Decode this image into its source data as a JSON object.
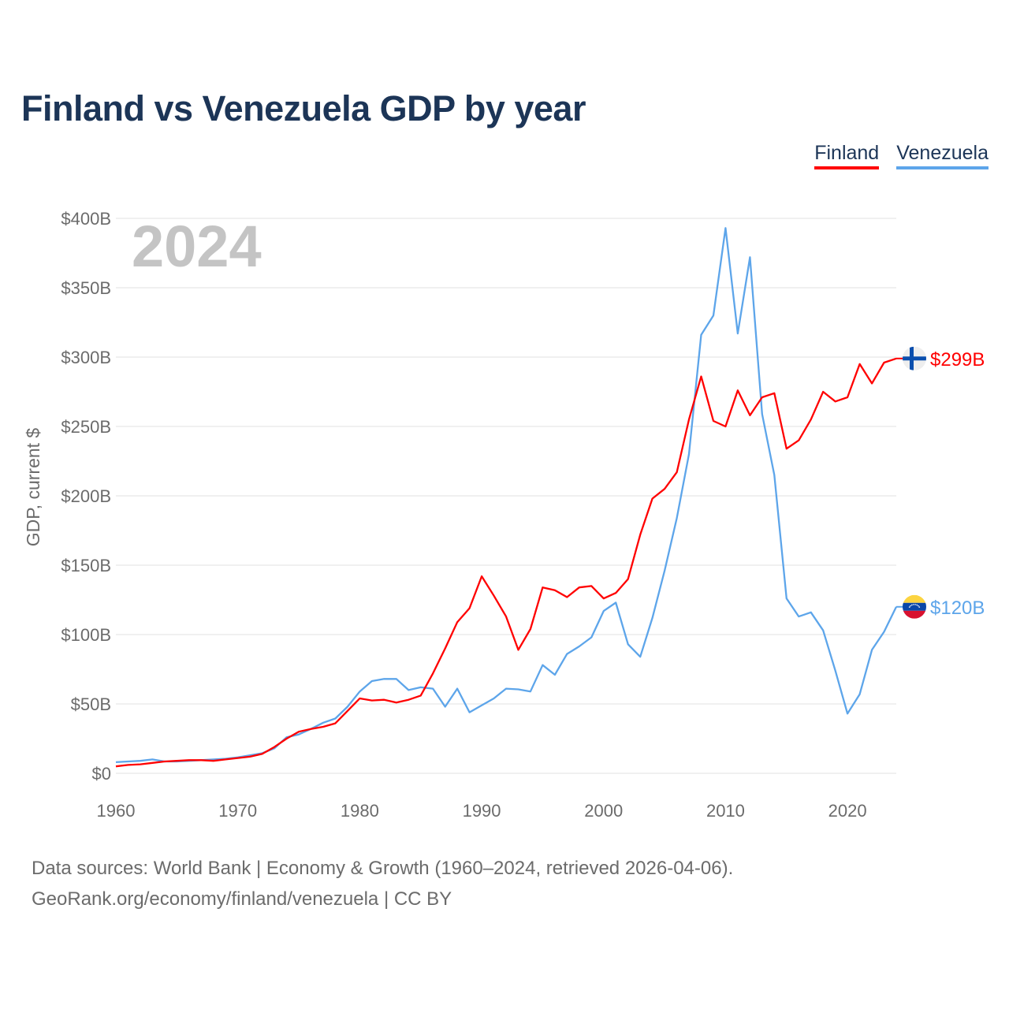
{
  "title": "Finland vs Venezuela GDP by year",
  "footer": {
    "line1": "Data sources: World Bank | Economy & Growth (1960–2024, retrieved 2026-04-06).",
    "line2": "GeoRank.org/economy/finland/venezuela | CC BY"
  },
  "chart_data": {
    "type": "line",
    "title": "Finland vs Venezuela GDP by year",
    "year_label": "2024",
    "xlabel": "",
    "ylabel": "GDP, current $",
    "xlim": [
      1960,
      2024
    ],
    "ylim": [
      0,
      400
    ],
    "x_ticks": [
      1960,
      1970,
      1980,
      1990,
      2000,
      2010,
      2020
    ],
    "x_tick_labels": [
      "1960",
      "1970",
      "1980",
      "1990",
      "2000",
      "2010",
      "2020"
    ],
    "y_ticks": [
      0,
      50,
      100,
      150,
      200,
      250,
      300,
      350,
      400
    ],
    "y_tick_labels": [
      "$0",
      "$50B",
      "$100B",
      "$150B",
      "$200B",
      "$250B",
      "$300B",
      "$350B",
      "$400B"
    ],
    "grid": true,
    "legend_position": "top-right",
    "x": [
      1960,
      1961,
      1962,
      1963,
      1964,
      1965,
      1966,
      1967,
      1968,
      1969,
      1970,
      1971,
      1972,
      1973,
      1974,
      1975,
      1976,
      1977,
      1978,
      1979,
      1980,
      1981,
      1982,
      1983,
      1984,
      1985,
      1986,
      1987,
      1988,
      1989,
      1990,
      1991,
      1992,
      1993,
      1994,
      1995,
      1996,
      1997,
      1998,
      1999,
      2000,
      2001,
      2002,
      2003,
      2004,
      2005,
      2006,
      2007,
      2008,
      2009,
      2010,
      2011,
      2012,
      2013,
      2014,
      2015,
      2016,
      2017,
      2018,
      2019,
      2020,
      2021,
      2022,
      2023,
      2024
    ],
    "series": [
      {
        "name": "Finland",
        "color": "#ff0000",
        "end_label": "$299B",
        "flag": "finland-flag",
        "values": [
          5,
          6,
          6.5,
          7.5,
          8.5,
          9,
          9.5,
          9.5,
          9,
          10,
          11,
          12,
          14,
          19,
          25,
          30,
          32,
          33.5,
          36,
          45,
          54,
          52.5,
          53,
          51,
          53,
          56,
          72,
          90,
          109,
          119,
          142,
          128,
          113,
          89,
          104,
          134,
          132,
          127,
          134,
          135,
          126,
          130,
          140,
          172,
          198,
          205,
          217,
          255,
          286,
          254,
          250,
          276,
          258,
          271,
          274,
          234,
          240,
          255,
          275,
          268,
          271,
          295,
          281,
          296,
          299
        ]
      },
      {
        "name": "Venezuela",
        "color": "#5da5ea",
        "end_label": "$120B",
        "flag": "venezuela-flag",
        "values": [
          8,
          8.5,
          9,
          10,
          8.5,
          8.5,
          9,
          9.5,
          10,
          10.5,
          11.5,
          13,
          14.5,
          18,
          26,
          28,
          32,
          36.5,
          39.5,
          48,
          59,
          66.5,
          68,
          68,
          60,
          62,
          61,
          48,
          61,
          44,
          49,
          54,
          61,
          60.5,
          59,
          78,
          71,
          86,
          91.5,
          98,
          117,
          123,
          93,
          84,
          112,
          146,
          184,
          230,
          316,
          330,
          393,
          317,
          372,
          259,
          215,
          126,
          113,
          116,
          103,
          74,
          43,
          57,
          89,
          102,
          120
        ]
      }
    ]
  }
}
